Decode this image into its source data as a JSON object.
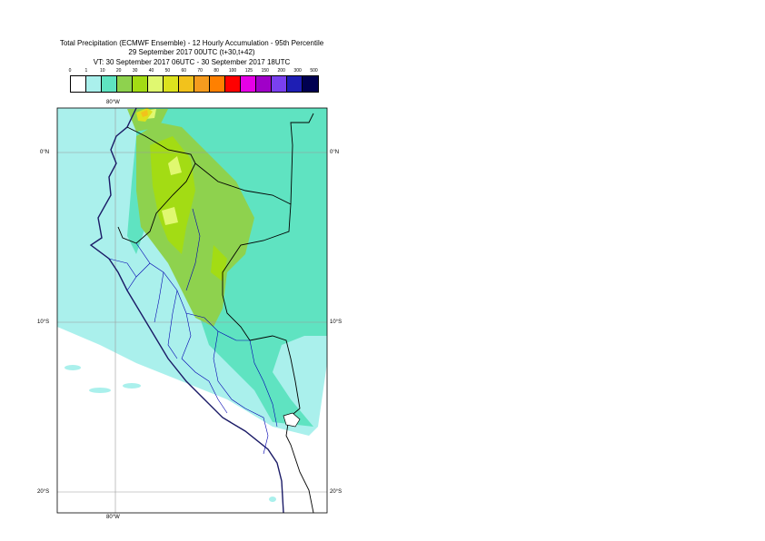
{
  "title": {
    "line1": "Total Precipitation (ECMWF Ensemble) - 12 Hourly Accumulation - 95th Percentile",
    "line2": "29 September 2017 00UTC (t+30,t+42)",
    "line3": "VT: 30 September 2017 06UTC - 30 September 2017 18UTC"
  },
  "legend": {
    "labels": [
      "0",
      "1",
      "10",
      "20",
      "30",
      "40",
      "50",
      "60",
      "70",
      "80",
      "100",
      "125",
      "150",
      "200",
      "300",
      "500"
    ],
    "colors": [
      "#ffffff",
      "#aaf0ec",
      "#5fe3c1",
      "#8ed24e",
      "#a3dc14",
      "#e0f870",
      "#dce21e",
      "#f2c21c",
      "#f59b1e",
      "#ff8000",
      "#ff0000",
      "#e600e6",
      "#a000c8",
      "#7a40ef",
      "#1e1eb4",
      "#000050"
    ]
  },
  "map": {
    "lon_labels": {
      "top": "80°W",
      "bottom": "80°W"
    },
    "lat_labels": {
      "eq": {
        "left": "0°N",
        "right": "0°N"
      },
      "s10": {
        "left": "10°S",
        "right": "10°S"
      },
      "s20": {
        "left": "20°S",
        "right": "20°S"
      }
    }
  }
}
